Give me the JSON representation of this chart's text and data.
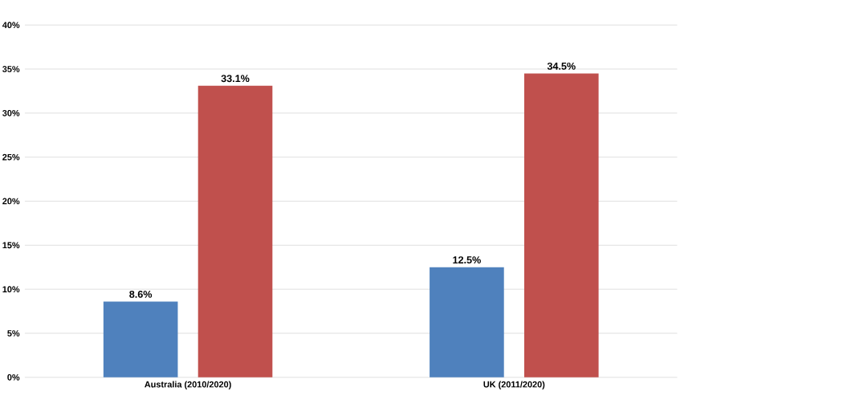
{
  "chart_data": {
    "type": "bar",
    "categories": [
      "Australia (2010/2020)",
      "UK (2011/2020)"
    ],
    "series": [
      {
        "color": "#4f81bd",
        "values": [
          8.6,
          12.5
        ],
        "value_labels": [
          "8.6%",
          "12.5%"
        ]
      },
      {
        "color": "#c0504d",
        "values": [
          33.1,
          34.5
        ],
        "value_labels": [
          "33.1%",
          "34.5%"
        ]
      }
    ],
    "ylim": [
      0,
      40
    ],
    "yticks": [
      {
        "value": 0,
        "label": "0%"
      },
      {
        "value": 5,
        "label": "5%"
      },
      {
        "value": 10,
        "label": "10%"
      },
      {
        "value": 15,
        "label": "15%"
      },
      {
        "value": 20,
        "label": "20%"
      },
      {
        "value": 25,
        "label": "25%"
      },
      {
        "value": 30,
        "label": "30%"
      },
      {
        "value": 35,
        "label": "35%"
      },
      {
        "value": 40,
        "label": "40%"
      }
    ],
    "grid": "y"
  }
}
